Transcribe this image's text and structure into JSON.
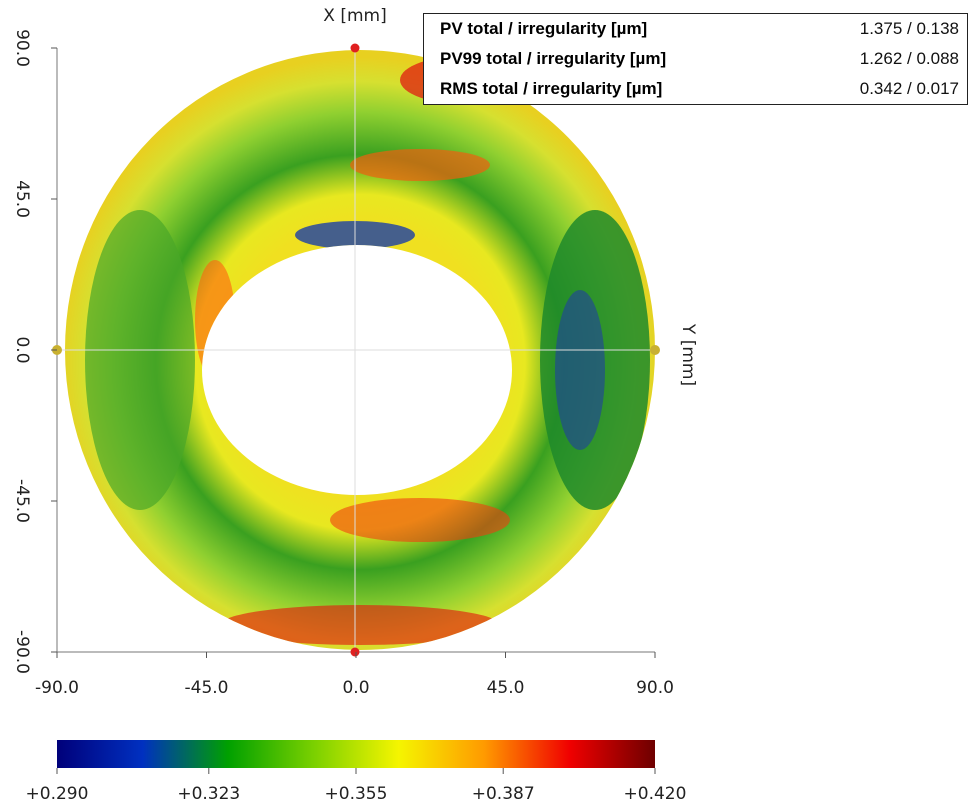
{
  "plot": {
    "x_label": "X [mm]",
    "y_label": "Y [mm]",
    "xlim": [
      -90,
      90
    ],
    "ylim": [
      -90,
      90
    ],
    "xticks": [
      {
        "value": -90,
        "label": "-90.0"
      },
      {
        "value": -45,
        "label": "-45.0"
      },
      {
        "value": 0,
        "label": "0.0"
      },
      {
        "value": 45,
        "label": "45.0"
      },
      {
        "value": 90,
        "label": "90.0"
      }
    ],
    "yticks": [
      {
        "value": 90,
        "label": "90.0"
      },
      {
        "value": 45,
        "label": "45.0"
      },
      {
        "value": 0,
        "label": "0.0"
      },
      {
        "value": -45,
        "label": "-45.0"
      },
      {
        "value": -90,
        "label": "-90.0"
      }
    ]
  },
  "colorbar": {
    "lim": [
      0.29,
      0.42
    ],
    "colors": [
      "#00007a",
      "#0030c0",
      "#00a000",
      "#7ad000",
      "#f5f500",
      "#ff9a00",
      "#f00000",
      "#6e0000"
    ],
    "ticks": [
      {
        "value": 0.29,
        "label": "+0.290"
      },
      {
        "value": 0.323,
        "label": "+0.323"
      },
      {
        "value": 0.355,
        "label": "+0.355"
      },
      {
        "value": 0.387,
        "label": "+0.387"
      },
      {
        "value": 0.42,
        "label": "+0.420"
      }
    ]
  },
  "stats": {
    "rows": [
      [
        "PV total / irregularity [µm]",
        "1.375 / 0.138"
      ],
      [
        "PV99 total / irregularity [µm]",
        "1.262 / 0.088"
      ],
      [
        "RMS total / irregularity [µm]",
        "0.342 / 0.017"
      ]
    ]
  }
}
